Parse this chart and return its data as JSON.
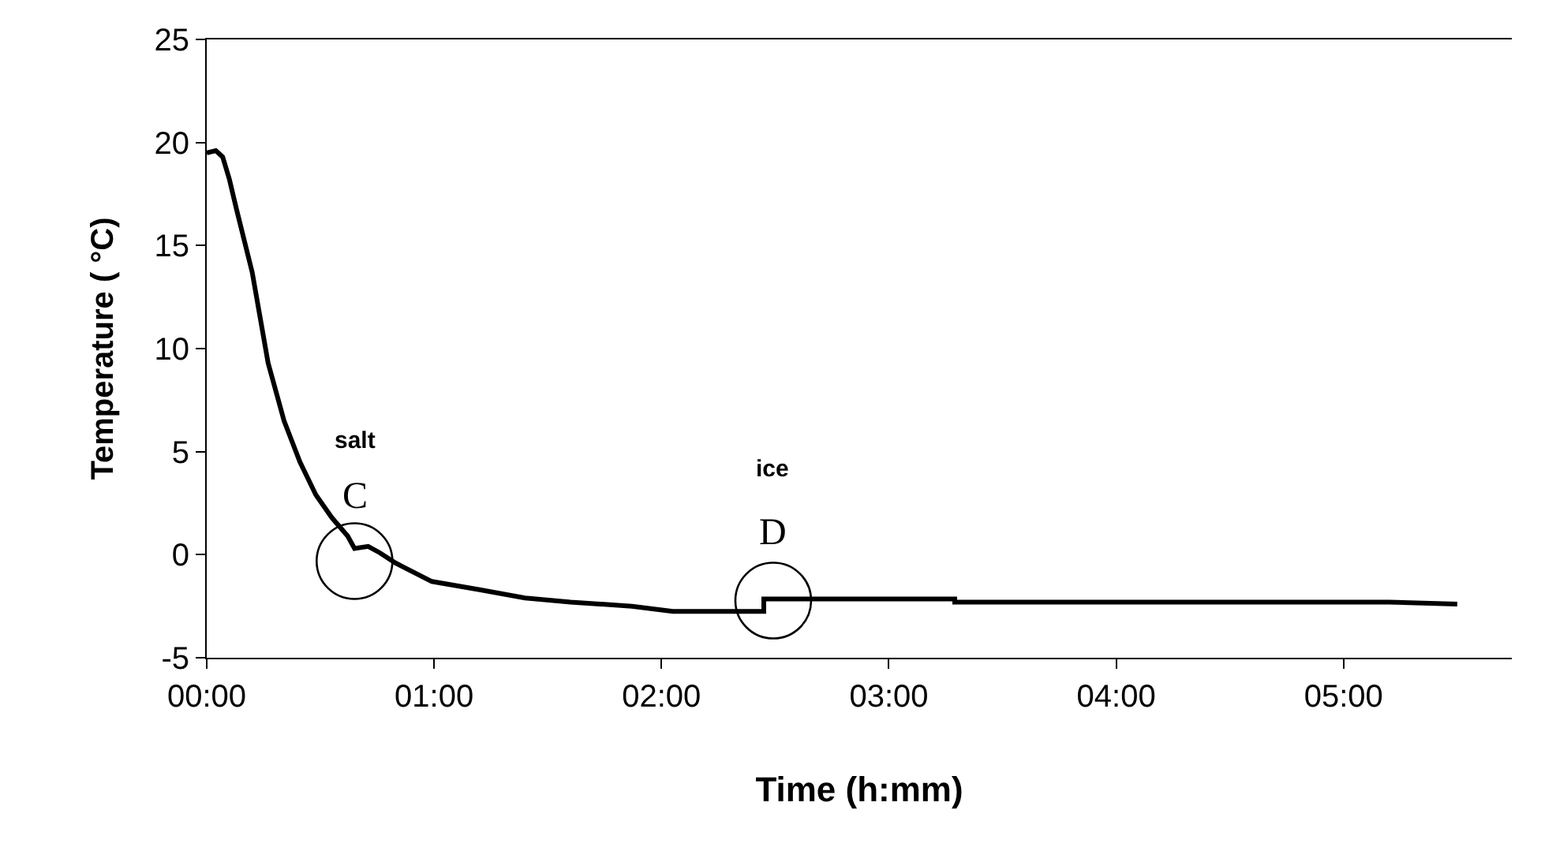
{
  "chart_data": {
    "type": "line",
    "xlabel": "Time (h:mm)",
    "ylabel": "Temperature ( °C)",
    "x": [
      0,
      0.04,
      0.07,
      0.1,
      0.13,
      0.2,
      0.27,
      0.34,
      0.41,
      0.48,
      0.55,
      0.62,
      0.65,
      0.71,
      0.76,
      0.83,
      0.99,
      1.2,
      1.4,
      1.6,
      1.87,
      2.05,
      2.45,
      2.45,
      2.6,
      3.29,
      3.29,
      5.2,
      5.5
    ],
    "series": [
      {
        "color": "#000000",
        "values": [
          19.5,
          19.6,
          19.3,
          18.2,
          16.8,
          13.7,
          9.3,
          6.5,
          4.5,
          2.9,
          1.8,
          0.9,
          0.3,
          0.4,
          0.1,
          -0.4,
          -1.3,
          -1.7,
          -2.1,
          -2.3,
          -2.5,
          -2.75,
          -2.75,
          -2.15,
          -2.15,
          -2.15,
          -2.3,
          -2.3,
          -2.4
        ]
      }
    ],
    "xlim": [
      0,
      5.74
    ],
    "ylim": [
      -5,
      25
    ],
    "xticks": [
      {
        "value": 0,
        "label": "00:00"
      },
      {
        "value": 1,
        "label": "01:00"
      },
      {
        "value": 2,
        "label": "02:00"
      },
      {
        "value": 3,
        "label": "03:00"
      },
      {
        "value": 4,
        "label": "04:00"
      },
      {
        "value": 5,
        "label": "05:00"
      }
    ],
    "yticks": [
      -5,
      0,
      5,
      10,
      15,
      20,
      25
    ],
    "annotations": [
      "salt",
      {
        "text": "C",
        "x": 0.65,
        "y": 0.3
      },
      "ice",
      {
        "text": "D",
        "x": 2.45,
        "y": -2.15
      }
    ],
    "marker": "none",
    "line_style": "solid"
  }
}
